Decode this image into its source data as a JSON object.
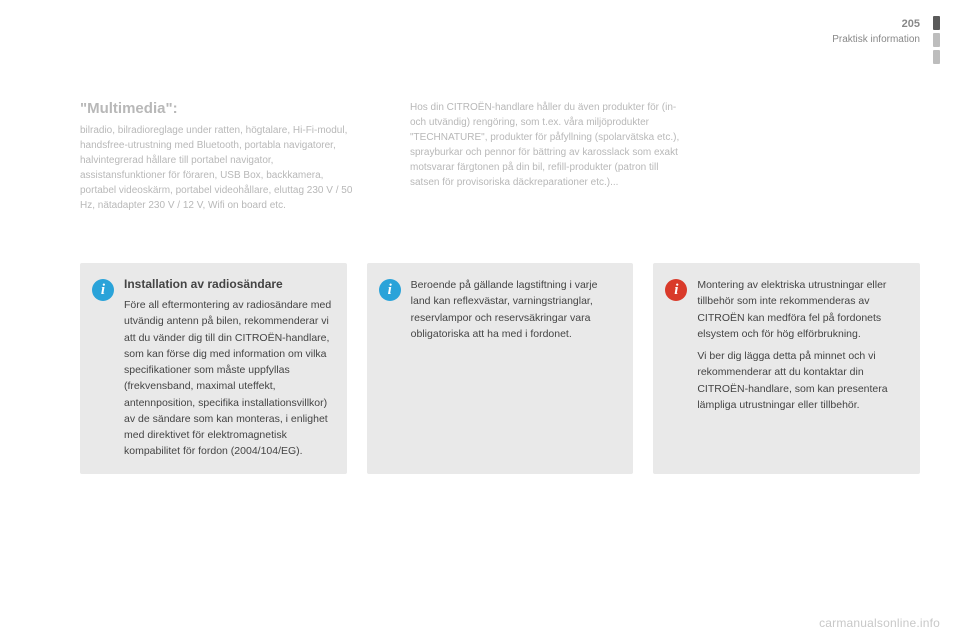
{
  "header": {
    "page_number": "205",
    "section": "Praktisk information",
    "tab_colors": [
      "#5a5a5a",
      "#bdbdbd",
      "#bdbdbd"
    ]
  },
  "columns": {
    "left": {
      "heading": "\"Multimedia\":",
      "body": "bilradio, bilradioreglage under ratten, högtalare, Hi-Fi-modul, handsfree-utrustning med Bluetooth, portabla navigatorer, halvintegrerad hållare till portabel navigator, assistansfunktioner för föraren, USB Box, backkamera, portabel videoskärm, portabel videohållare, eluttag 230 V / 50 Hz, nätadapter 230 V / 12 V, Wifi on board etc."
    },
    "right": {
      "body": "Hos din CITROËN-handlare håller du även produkter för (in- och utvändig) rengöring, som t.ex. våra miljöprodukter \"TECHNATURE\", produkter för påfyllning (spolarvätska etc.), sprayburkar och pennor för bättring av karosslack som exakt motsvarar färgtonen på din bil, refill-produkter (patron till satsen för provisoriska däckreparationer etc.)..."
    }
  },
  "boxes": {
    "box1": {
      "icon_color": "#2aa3d9",
      "title": "Installation av radiosändare",
      "body": "Före all eftermontering av radiosändare med utvändig antenn på bilen, rekommenderar vi att du vänder dig till din CITROËN-handlare, som kan förse dig med information om vilka specifikationer som måste uppfyllas (frekvensband, maximal uteffekt, antennposition, specifika installationsvillkor) av de sändare som kan monteras, i enlighet med direktivet för elektromagnetisk kompabilitet för fordon (2004/104/EG)."
    },
    "box2": {
      "icon_color": "#2aa3d9",
      "body": "Beroende på gällande lagstiftning i varje land kan reflexvästar, varningstrianglar, reservlampor och reservsäkringar vara obligatoriska att ha med i fordonet."
    },
    "box3": {
      "icon_color": "#d93a2a",
      "p1": "Montering av elektriska utrustningar eller tillbehör som inte rekommenderas av CITROËN kan medföra fel på fordonets elsystem och för hög elförbrukning.",
      "p2": "Vi ber dig lägga detta på minnet och vi rekommenderar att du kontaktar din CITROËN-handlare, som kan presentera lämpliga utrustningar eller tillbehör."
    }
  },
  "footer": {
    "text": "carmanualsonline.info"
  }
}
